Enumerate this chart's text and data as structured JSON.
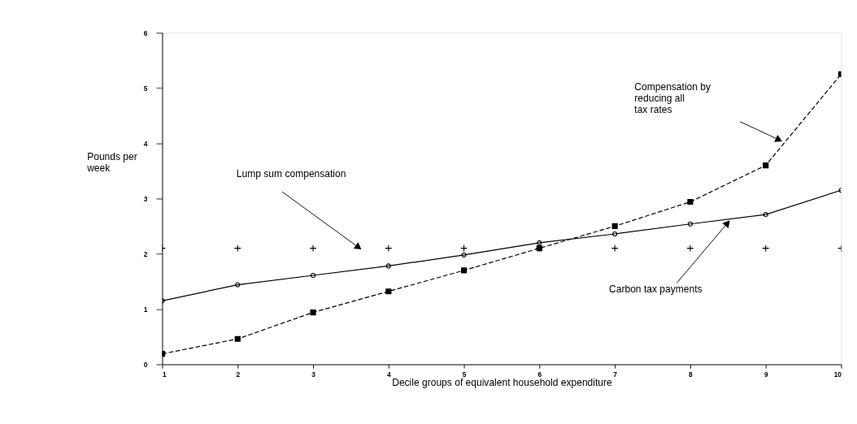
{
  "chart_data": {
    "type": "line",
    "xlabel": "Decile groups of equivalent household expenditure",
    "ylabel": "Pounds per\nweek",
    "x": [
      1,
      2,
      3,
      4,
      5,
      6,
      7,
      8,
      9,
      10
    ],
    "series": [
      {
        "type": "scatter",
        "marker": "cross",
        "color": "#000000",
        "values": [
          2.1,
          2.1,
          2.1,
          2.1,
          2.1,
          2.1,
          2.1,
          2.1,
          2.1,
          2.1
        ]
      },
      {
        "marker": "circle",
        "line_style": "solid",
        "color": "#000000",
        "values": [
          1.15,
          1.44,
          1.61,
          1.78,
          1.98,
          2.2,
          2.36,
          2.54,
          2.71,
          3.15
        ]
      },
      {
        "marker": "square",
        "line_style": "dashed",
        "color": "#000000",
        "values": [
          0.19,
          0.46,
          0.94,
          1.32,
          1.7,
          2.1,
          2.5,
          2.94,
          3.6,
          5.25
        ]
      }
    ],
    "xlim": [
      1,
      10
    ],
    "xticks": [
      1,
      2,
      3,
      4,
      5,
      6,
      7,
      8,
      9,
      10
    ],
    "ylim": [
      0,
      6
    ],
    "yticks": [
      0,
      1,
      2,
      3,
      4,
      5,
      6
    ],
    "grid": false,
    "annotations": [
      "Lump sum compensation",
      "Compensation by\nreducing all\ntax rates",
      {
        "text": "Carbon tax payments",
        "x": 8.54,
        "y": 2.63
      }
    ]
  }
}
